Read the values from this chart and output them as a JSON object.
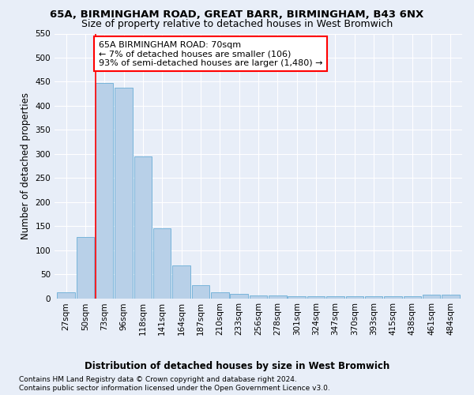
{
  "title": "65A, BIRMINGHAM ROAD, GREAT BARR, BIRMINGHAM, B43 6NX",
  "subtitle": "Size of property relative to detached houses in West Bromwich",
  "xlabel": "Distribution of detached houses by size in West Bromwich",
  "ylabel": "Number of detached properties",
  "footer_line1": "Contains HM Land Registry data © Crown copyright and database right 2024.",
  "footer_line2": "Contains public sector information licensed under the Open Government Licence v3.0.",
  "bar_labels": [
    "27sqm",
    "50sqm",
    "73sqm",
    "96sqm",
    "118sqm",
    "141sqm",
    "164sqm",
    "187sqm",
    "210sqm",
    "233sqm",
    "256sqm",
    "278sqm",
    "301sqm",
    "324sqm",
    "347sqm",
    "370sqm",
    "393sqm",
    "415sqm",
    "438sqm",
    "461sqm",
    "484sqm"
  ],
  "bar_values": [
    13,
    127,
    447,
    438,
    295,
    145,
    68,
    27,
    13,
    9,
    6,
    5,
    4,
    4,
    4,
    4,
    4,
    4,
    4,
    7,
    7
  ],
  "bar_color": "#b8d0e8",
  "bar_edge_color": "#6aaed6",
  "red_line_index": 2,
  "annotation_text": "65A BIRMINGHAM ROAD: 70sqm\n← 7% of detached houses are smaller (106)\n93% of semi-detached houses are larger (1,480) →",
  "annotation_box_color": "white",
  "annotation_box_edge_color": "red",
  "ylim": [
    0,
    550
  ],
  "yticks": [
    0,
    50,
    100,
    150,
    200,
    250,
    300,
    350,
    400,
    450,
    500,
    550
  ],
  "background_color": "#e8eef8",
  "grid_color": "white",
  "title_fontsize": 9.5,
  "subtitle_fontsize": 9,
  "ylabel_fontsize": 8.5,
  "xlabel_fontsize": 8.5,
  "tick_fontsize": 7.5,
  "annotation_fontsize": 8,
  "footer_fontsize": 6.5
}
